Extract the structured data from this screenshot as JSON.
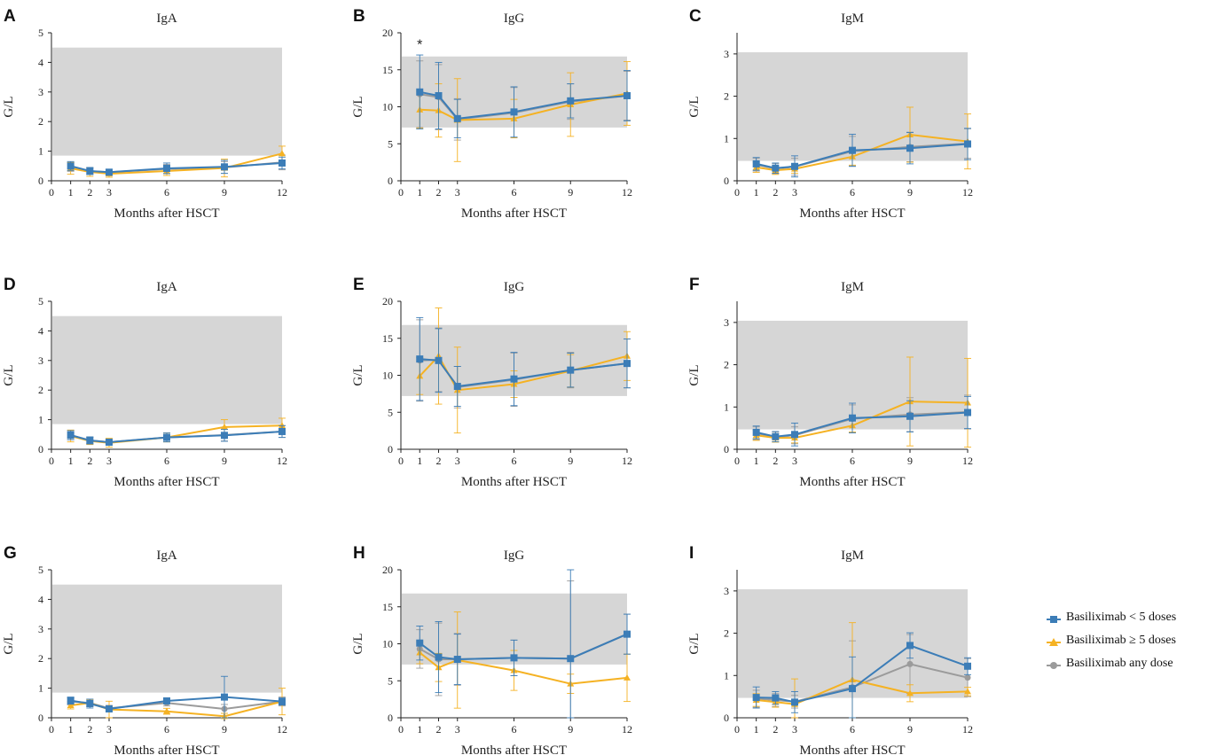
{
  "colors": {
    "lt5": "#3C7DB7",
    "ge5": "#F5B223",
    "any": "#9B9B9B",
    "reference_band": "#D6D6D6"
  },
  "legend": [
    {
      "key": "lt5",
      "label": "Basiliximab < 5 doses",
      "marker": "square"
    },
    {
      "key": "ge5",
      "label": "Basiliximab ≥ 5 doses",
      "marker": "triangle"
    },
    {
      "key": "any",
      "label": "Basiliximab any dose",
      "marker": "circle"
    }
  ],
  "chart_data": [
    {
      "panel": "A",
      "type": "line",
      "title": "IgA",
      "xlabel": "Months after HSCT",
      "ylabel": "G/L",
      "xticks": [
        0,
        1,
        2,
        3,
        6,
        9,
        12
      ],
      "xlim": [
        0,
        12
      ],
      "ylim": [
        0,
        5
      ],
      "yticks": [
        0,
        1,
        2,
        3,
        4,
        5
      ],
      "reference_range": [
        0.85,
        4.5
      ],
      "annotations": [],
      "series": [
        {
          "key": "any",
          "x": [
            1,
            2,
            3,
            6,
            9,
            12
          ],
          "y": [
            0.47,
            0.32,
            0.29,
            0.4,
            0.45,
            0.62
          ],
          "err": [
            0.15,
            0.1,
            0.1,
            0.15,
            0.2,
            0.25
          ]
        },
        {
          "key": "ge5",
          "x": [
            1,
            2,
            3,
            6,
            9,
            12
          ],
          "y": [
            0.42,
            0.3,
            0.24,
            0.33,
            0.43,
            0.92
          ],
          "err": [
            0.2,
            0.15,
            0.12,
            0.15,
            0.3,
            0.25
          ]
        },
        {
          "key": "lt5",
          "x": [
            1,
            2,
            3,
            6,
            9,
            12
          ],
          "y": [
            0.5,
            0.33,
            0.29,
            0.42,
            0.47,
            0.6
          ],
          "err": [
            0.15,
            0.12,
            0.1,
            0.18,
            0.22,
            0.2
          ]
        }
      ]
    },
    {
      "panel": "B",
      "type": "line",
      "title": "IgG",
      "xlabel": "Months after HSCT",
      "ylabel": "G/L",
      "xticks": [
        0,
        1,
        2,
        3,
        6,
        9,
        12
      ],
      "xlim": [
        0,
        12
      ],
      "ylim": [
        0,
        20
      ],
      "yticks": [
        0,
        5,
        10,
        15,
        20
      ],
      "reference_range": [
        7.2,
        16.8
      ],
      "annotations": [
        {
          "text": "*",
          "x": 1,
          "y": 19
        }
      ],
      "series": [
        {
          "key": "any",
          "x": [
            1,
            2,
            3,
            6,
            9,
            12
          ],
          "y": [
            11.7,
            11.3,
            8.3,
            9.2,
            10.7,
            11.5
          ],
          "err": [
            4.5,
            4.4,
            2.8,
            3.4,
            2.4,
            3.3
          ]
        },
        {
          "key": "ge5",
          "x": [
            1,
            2,
            3,
            6,
            9,
            12
          ],
          "y": [
            9.6,
            9.5,
            8.2,
            8.4,
            10.3,
            11.8
          ],
          "err": [
            2.5,
            3.6,
            5.6,
            2.6,
            4.3,
            4.3
          ]
        },
        {
          "key": "lt5",
          "x": [
            1,
            2,
            3,
            6,
            9,
            12
          ],
          "y": [
            12.0,
            11.5,
            8.4,
            9.3,
            10.8,
            11.5
          ],
          "err": [
            5.0,
            4.5,
            2.6,
            3.4,
            2.3,
            3.4
          ]
        }
      ]
    },
    {
      "panel": "C",
      "type": "line",
      "title": "IgM",
      "xlabel": "Months after HSCT",
      "ylabel": "G/L",
      "xticks": [
        0,
        1,
        2,
        3,
        6,
        9,
        12
      ],
      "xlim": [
        0,
        12
      ],
      "ylim": [
        0,
        3.5
      ],
      "yticks": [
        0,
        1,
        2,
        3
      ],
      "reference_range": [
        0.47,
        3.04
      ],
      "annotations": [],
      "series": [
        {
          "key": "any",
          "x": [
            1,
            2,
            3,
            6,
            9,
            12
          ],
          "y": [
            0.38,
            0.29,
            0.33,
            0.7,
            0.8,
            0.88
          ],
          "err": [
            0.15,
            0.12,
            0.2,
            0.35,
            0.35,
            0.35
          ]
        },
        {
          "key": "ge5",
          "x": [
            1,
            2,
            3,
            6,
            9,
            12
          ],
          "y": [
            0.32,
            0.25,
            0.28,
            0.57,
            1.09,
            0.93
          ],
          "err": [
            0.12,
            0.1,
            0.1,
            0.2,
            0.65,
            0.65
          ]
        },
        {
          "key": "lt5",
          "x": [
            1,
            2,
            3,
            6,
            9,
            12
          ],
          "y": [
            0.4,
            0.3,
            0.34,
            0.72,
            0.77,
            0.87
          ],
          "err": [
            0.15,
            0.12,
            0.25,
            0.38,
            0.37,
            0.37
          ]
        }
      ]
    },
    {
      "panel": "D",
      "type": "line",
      "title": "IgA",
      "xlabel": "Months after HSCT",
      "ylabel": "G/L",
      "xticks": [
        0,
        1,
        2,
        3,
        6,
        9,
        12
      ],
      "xlim": [
        0,
        12
      ],
      "ylim": [
        0,
        5
      ],
      "yticks": [
        0,
        1,
        2,
        3,
        4,
        5
      ],
      "reference_range": [
        0.85,
        4.5
      ],
      "annotations": [],
      "series": [
        {
          "key": "any",
          "x": [
            1,
            2,
            3,
            6,
            9,
            12
          ],
          "y": [
            0.47,
            0.3,
            0.24,
            0.4,
            0.48,
            0.6
          ],
          "err": [
            0.15,
            0.12,
            0.1,
            0.15,
            0.2,
            0.2
          ]
        },
        {
          "key": "ge5",
          "x": [
            1,
            2,
            3,
            6,
            9,
            12
          ],
          "y": [
            0.45,
            0.28,
            0.22,
            0.4,
            0.75,
            0.8
          ],
          "err": [
            0.2,
            0.12,
            0.15,
            0.15,
            0.25,
            0.25
          ]
        },
        {
          "key": "lt5",
          "x": [
            1,
            2,
            3,
            6,
            9,
            12
          ],
          "y": [
            0.48,
            0.3,
            0.24,
            0.4,
            0.47,
            0.6
          ],
          "err": [
            0.15,
            0.12,
            0.1,
            0.15,
            0.2,
            0.2
          ]
        }
      ]
    },
    {
      "panel": "E",
      "type": "line",
      "title": "IgG",
      "xlabel": "Months after HSCT",
      "ylabel": "G/L",
      "xticks": [
        0,
        1,
        2,
        3,
        6,
        9,
        12
      ],
      "xlim": [
        0,
        12
      ],
      "ylim": [
        0,
        20
      ],
      "yticks": [
        0,
        5,
        10,
        15,
        20
      ],
      "reference_range": [
        7.2,
        16.8
      ],
      "annotations": [],
      "series": [
        {
          "key": "any",
          "x": [
            1,
            2,
            3,
            6,
            9,
            12
          ],
          "y": [
            12.0,
            12.1,
            8.4,
            9.4,
            10.7,
            11.6
          ],
          "err": [
            5.5,
            4.3,
            2.8,
            3.6,
            2.4,
            3.3
          ]
        },
        {
          "key": "ge5",
          "x": [
            1,
            2,
            3,
            6,
            9,
            12
          ],
          "y": [
            9.9,
            12.6,
            8.0,
            8.8,
            10.6,
            12.6
          ],
          "err": [
            2.5,
            6.5,
            5.8,
            1.8,
            2.2,
            3.3
          ]
        },
        {
          "key": "lt5",
          "x": [
            1,
            2,
            3,
            6,
            9,
            12
          ],
          "y": [
            12.2,
            12.0,
            8.5,
            9.5,
            10.7,
            11.6
          ],
          "err": [
            5.6,
            4.3,
            2.7,
            3.6,
            2.3,
            3.3
          ]
        }
      ]
    },
    {
      "panel": "F",
      "type": "line",
      "title": "IgM",
      "xlabel": "Months after HSCT",
      "ylabel": "G/L",
      "xticks": [
        0,
        1,
        2,
        3,
        6,
        9,
        12
      ],
      "xlim": [
        0,
        12
      ],
      "ylim": [
        0,
        3.5
      ],
      "yticks": [
        0,
        1,
        2,
        3
      ],
      "reference_range": [
        0.47,
        3.04
      ],
      "annotations": [],
      "series": [
        {
          "key": "any",
          "x": [
            1,
            2,
            3,
            6,
            9,
            12
          ],
          "y": [
            0.38,
            0.29,
            0.33,
            0.72,
            0.82,
            0.88
          ],
          "err": [
            0.15,
            0.12,
            0.2,
            0.33,
            0.4,
            0.4
          ]
        },
        {
          "key": "ge5",
          "x": [
            1,
            2,
            3,
            6,
            9,
            12
          ],
          "y": [
            0.33,
            0.27,
            0.27,
            0.56,
            1.13,
            1.1
          ],
          "err": [
            0.12,
            0.1,
            0.12,
            0.15,
            1.05,
            1.05
          ]
        },
        {
          "key": "lt5",
          "x": [
            1,
            2,
            3,
            6,
            9,
            12
          ],
          "y": [
            0.4,
            0.3,
            0.35,
            0.74,
            0.78,
            0.87
          ],
          "err": [
            0.15,
            0.12,
            0.27,
            0.35,
            0.37,
            0.38
          ]
        }
      ]
    },
    {
      "panel": "G",
      "type": "line",
      "title": "IgA",
      "xlabel": "Months after HSCT",
      "ylabel": "G/L",
      "xticks": [
        0,
        1,
        2,
        3,
        6,
        9,
        12
      ],
      "xlim": [
        0,
        12
      ],
      "ylim": [
        0,
        5
      ],
      "yticks": [
        0,
        1,
        2,
        3,
        4,
        5
      ],
      "reference_range": [
        0.85,
        4.5
      ],
      "annotations": [],
      "series": [
        {
          "key": "any",
          "x": [
            1,
            2,
            3,
            6,
            9,
            12
          ],
          "y": [
            0.55,
            0.5,
            0.32,
            0.5,
            0.3,
            0.55
          ],
          "err": [
            0.12,
            0.12,
            0.1,
            0.1,
            0.15,
            0.15
          ]
        },
        {
          "key": "ge5",
          "x": [
            1,
            2,
            3,
            6,
            9,
            12
          ],
          "y": [
            0.42,
            0.5,
            0.28,
            0.22,
            0.05,
            0.55
          ],
          "err": [
            0.12,
            0.12,
            0.28,
            0.1,
            0.1,
            0.45
          ]
        },
        {
          "key": "lt5",
          "x": [
            1,
            2,
            3,
            6,
            9,
            12
          ],
          "y": [
            0.58,
            0.48,
            0.3,
            0.57,
            0.7,
            0.55
          ],
          "err": [
            0.12,
            0.15,
            0.1,
            0.1,
            0.7,
            0.12
          ]
        }
      ]
    },
    {
      "panel": "H",
      "type": "line",
      "title": "IgG",
      "xlabel": "Months after HSCT",
      "ylabel": "G/L",
      "xticks": [
        0,
        1,
        2,
        3,
        6,
        9,
        12
      ],
      "xlim": [
        0,
        12
      ],
      "ylim": [
        0,
        20
      ],
      "yticks": [
        0,
        5,
        10,
        15,
        20
      ],
      "reference_range": [
        7.2,
        16.8
      ],
      "annotations": [],
      "series": [
        {
          "key": "any",
          "x": [
            1,
            2,
            3,
            6,
            9,
            12
          ],
          "y": [
            9.3,
            7.9,
            7.9,
            8.1,
            8.0,
            11.3
          ],
          "err": [
            2.6,
            4.9,
            3.5,
            2.4,
            10.5,
            2.7
          ]
        },
        {
          "key": "ge5",
          "x": [
            1,
            2,
            3,
            6,
            9,
            12
          ],
          "y": [
            8.8,
            6.8,
            7.8,
            6.4,
            4.6,
            5.4
          ],
          "err": [
            1.5,
            1.9,
            6.5,
            2.7,
            1.3,
            3.2
          ]
        },
        {
          "key": "lt5",
          "x": [
            1,
            2,
            3,
            6,
            9,
            12
          ],
          "y": [
            10.1,
            8.2,
            7.9,
            8.1,
            8.0,
            11.3
          ],
          "err": [
            2.3,
            4.8,
            3.4,
            2.4,
            12.0,
            2.7
          ]
        }
      ]
    },
    {
      "panel": "I",
      "type": "line",
      "title": "IgM",
      "xlabel": "Months after HSCT",
      "ylabel": "G/L",
      "xticks": [
        0,
        1,
        2,
        3,
        6,
        9,
        12
      ],
      "xlim": [
        0,
        12
      ],
      "ylim": [
        0,
        3.5
      ],
      "yticks": [
        0,
        1,
        2,
        3
      ],
      "reference_range": [
        0.47,
        3.04
      ],
      "annotations": [],
      "series": [
        {
          "key": "any",
          "x": [
            1,
            2,
            3,
            6,
            9,
            12
          ],
          "y": [
            0.45,
            0.42,
            0.38,
            0.72,
            1.27,
            0.95
          ],
          "err": [
            0.2,
            0.15,
            0.15,
            1.1,
            0.7,
            0.45
          ]
        },
        {
          "key": "ge5",
          "x": [
            1,
            2,
            3,
            6,
            9,
            12
          ],
          "y": [
            0.42,
            0.37,
            0.32,
            0.9,
            0.58,
            0.62
          ],
          "err": [
            0.15,
            0.12,
            0.6,
            1.35,
            0.2,
            0.1
          ]
        },
        {
          "key": "lt5",
          "x": [
            1,
            2,
            3,
            6,
            9,
            12
          ],
          "y": [
            0.48,
            0.47,
            0.37,
            0.69,
            1.71,
            1.22
          ],
          "err": [
            0.25,
            0.15,
            0.25,
            0.75,
            0.3,
            0.2
          ]
        }
      ]
    }
  ]
}
